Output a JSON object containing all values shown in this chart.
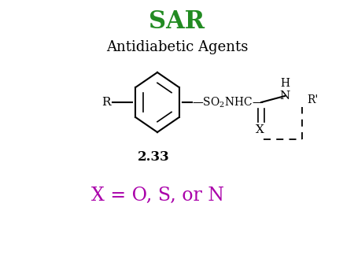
{
  "title": "SAR",
  "title_color": "#228B22",
  "subtitle": "Antidiabetic Agents",
  "subtitle_color": "#000000",
  "label_number": "2.33",
  "label_number_color": "#000000",
  "bottom_text": "X = O, S, or N",
  "bottom_text_color": "#AA00AA",
  "bg_color": "#ffffff",
  "fig_width": 4.5,
  "fig_height": 3.38,
  "dpi": 100
}
